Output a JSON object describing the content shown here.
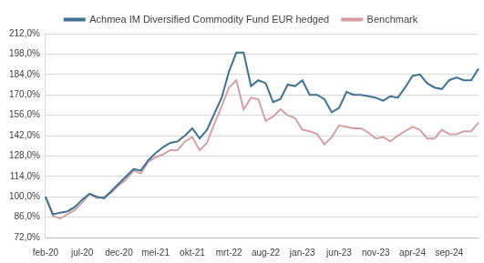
{
  "chart_data": {
    "type": "line",
    "categories": [
      "feb-20",
      null,
      null,
      null,
      null,
      "jul-20",
      null,
      null,
      null,
      null,
      "dec-20",
      null,
      null,
      null,
      null,
      "mei-21",
      null,
      null,
      null,
      null,
      "okt-21",
      null,
      null,
      null,
      null,
      "mrt-22",
      null,
      null,
      null,
      null,
      "aug-22",
      null,
      null,
      null,
      null,
      "jan-23",
      null,
      null,
      null,
      null,
      "jun-23",
      null,
      null,
      null,
      null,
      "nov-23",
      null,
      null,
      null,
      null,
      "apr-24",
      null,
      null,
      null,
      null,
      "sep-24",
      null,
      null,
      null,
      null
    ],
    "series": [
      {
        "name": "Achmea IM Diversified Commodity Fund EUR hedged",
        "color": "#41718f",
        "values": [
          100,
          88,
          89,
          90,
          93,
          98,
          102,
          100,
          99,
          104,
          109,
          114,
          119,
          118,
          125,
          130,
          134,
          137,
          138,
          142,
          147,
          140,
          146,
          157,
          168,
          186,
          199,
          199,
          176,
          180,
          178,
          165,
          167,
          177,
          176,
          180,
          170,
          170,
          167,
          158,
          161,
          172,
          170,
          170,
          169,
          168,
          166,
          169,
          168,
          175,
          183,
          184,
          178,
          175,
          174,
          180,
          182,
          180,
          180,
          188
        ]
      },
      {
        "name": "Benchmark",
        "color": "#d4a0a6",
        "values": [
          100,
          87,
          85,
          88,
          91,
          96,
          102,
          99,
          100,
          103,
          108,
          112,
          118,
          116,
          124,
          127,
          129,
          132,
          132,
          138,
          141,
          132,
          137,
          150,
          162,
          175,
          180,
          160,
          168,
          167,
          152,
          155,
          160,
          156,
          154,
          146,
          145,
          143,
          136,
          141,
          149,
          148,
          147,
          147,
          144,
          140,
          141,
          138,
          142,
          145,
          148,
          146,
          140,
          140,
          146,
          143,
          143,
          145,
          145,
          151
        ]
      }
    ],
    "ylim": [
      72,
      212
    ],
    "yticks": [
      {
        "value": 72,
        "label": "72,0%"
      },
      {
        "value": 86,
        "label": "86,0%"
      },
      {
        "value": 100,
        "label": "100,0%"
      },
      {
        "value": 114,
        "label": "114,0%"
      },
      {
        "value": 128,
        "label": "128,0%"
      },
      {
        "value": 142,
        "label": "142,0%"
      },
      {
        "value": 156,
        "label": "156,0%"
      },
      {
        "value": 170,
        "label": "170,0%"
      },
      {
        "value": 184,
        "label": "184,0%"
      },
      {
        "value": 198,
        "label": "198,0%"
      },
      {
        "value": 212,
        "label": "212,0%"
      }
    ],
    "grid": true,
    "legend": "top"
  }
}
